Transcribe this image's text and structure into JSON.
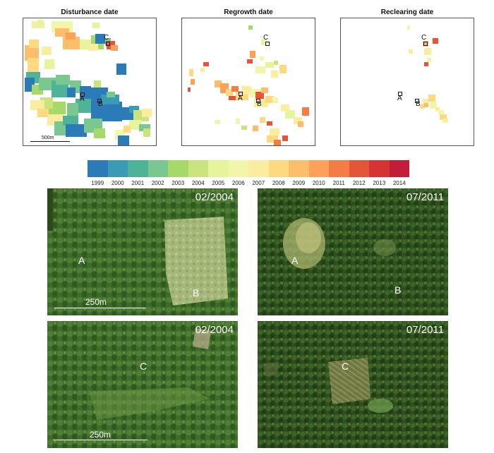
{
  "maps": {
    "disturbance": {
      "title": "Disturbance date",
      "scale_label": "500m"
    },
    "regrowth": {
      "title": "Regrowth date"
    },
    "reclearing": {
      "title": "Reclearing date"
    }
  },
  "markers": {
    "a": "A",
    "b": "B",
    "c": "C"
  },
  "legend": {
    "years": [
      "1999",
      "2000",
      "2001",
      "2002",
      "2003",
      "2004",
      "2005",
      "2006",
      "2007",
      "2008",
      "2009",
      "2010",
      "2011",
      "2012",
      "2013",
      "2014"
    ],
    "colors": [
      "#2b7bb9",
      "#3c9bb4",
      "#4fb398",
      "#78c88f",
      "#a6d96a",
      "#c9e47f",
      "#e6f49b",
      "#f1f6a8",
      "#fbeda0",
      "#fdd97f",
      "#fdbe6c",
      "#fca05a",
      "#f47c47",
      "#e55638",
      "#d63432",
      "#c51b3a"
    ]
  },
  "photos": {
    "top_left": {
      "date": "02/2004",
      "scale": "250m",
      "labels": [
        "A",
        "B"
      ]
    },
    "top_right": {
      "date": "07/2011",
      "labels": [
        "A",
        "B"
      ]
    },
    "bottom_left": {
      "date": "02/2004",
      "scale": "250m",
      "labels": [
        "C"
      ]
    },
    "bottom_right": {
      "date": "07/2011",
      "labels": [
        "C"
      ]
    }
  }
}
